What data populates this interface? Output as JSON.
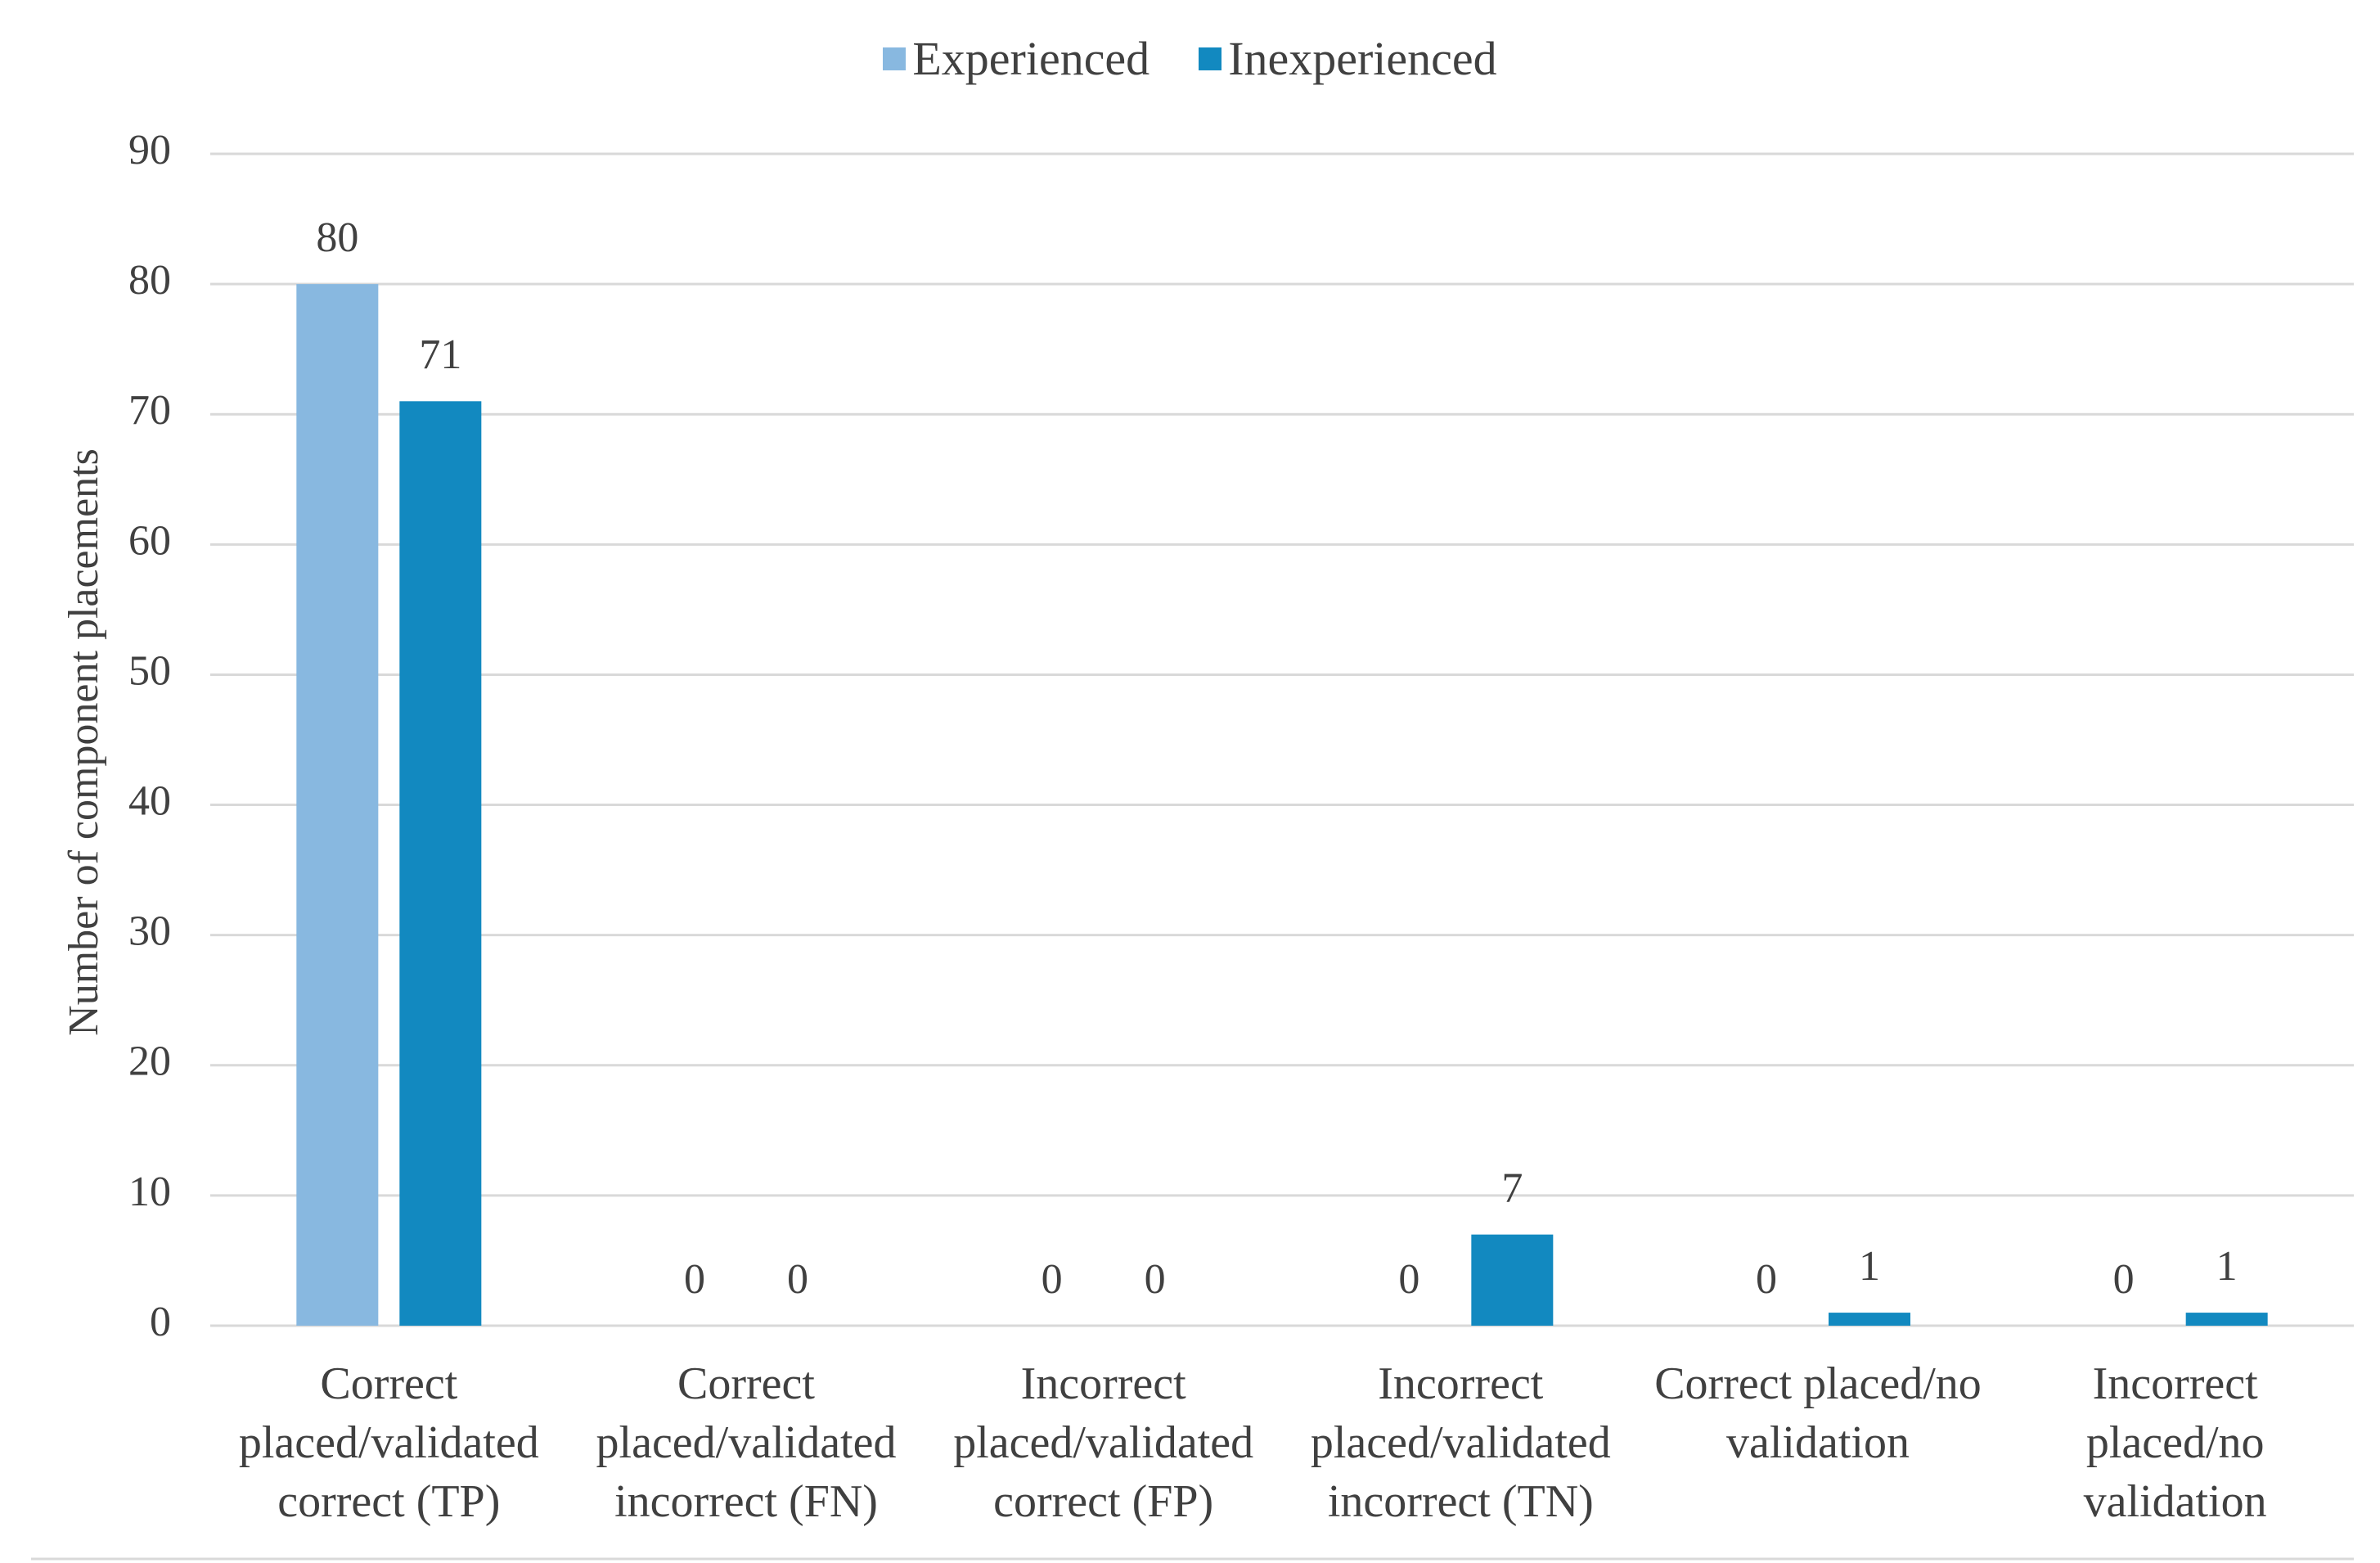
{
  "chart_data": {
    "type": "bar",
    "categories": [
      "Correct placed/validated correct (TP)",
      "Correct placed/validated incorrect (FN)",
      "Incorrect placed/validated correct (FP)",
      "Incorrect placed/validated incorrect (TN)",
      "Correct placed/no validation",
      "Incorrect placed/no validation"
    ],
    "series": [
      {
        "name": "Experienced",
        "color": "#88b8e0",
        "values": [
          80,
          0,
          0,
          0,
          0,
          0
        ]
      },
      {
        "name": "Inexperienced",
        "color": "#1289c0",
        "values": [
          71,
          0,
          0,
          7,
          1,
          1
        ]
      }
    ],
    "y_label": "Number of component placements",
    "ylim": [
      0,
      90
    ],
    "yticks": [
      0,
      10,
      20,
      30,
      40,
      50,
      60,
      70,
      80,
      90
    ],
    "grid": true,
    "legend": "top"
  }
}
